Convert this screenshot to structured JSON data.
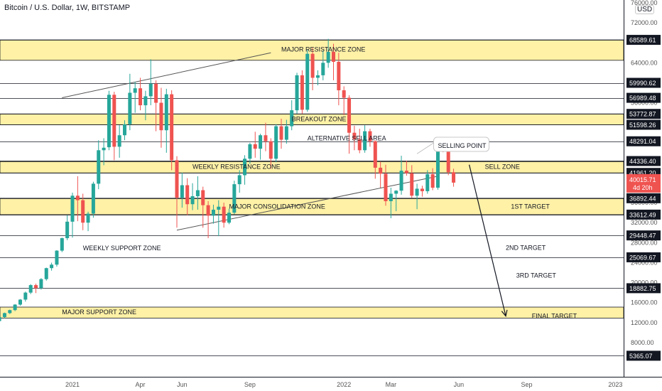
{
  "title": "Bitcoin / U.S. Dollar, 1W, BITSTAMP",
  "currency": "USD",
  "chart_data": {
    "type": "candlestick",
    "y_range": [
      4000,
      76000
    ],
    "y_ticks": [
      "76000.00",
      "72000.00",
      "64000.00",
      "56000.00",
      "48000.00",
      "40000.00",
      "36000.00",
      "32000.00",
      "28000.00",
      "24000.00",
      "20000.00",
      "16000.00",
      "12000.00",
      "8000.00"
    ],
    "x_ticks": [
      {
        "label": "2021",
        "week": 0
      },
      {
        "label": "Apr",
        "week": 13
      },
      {
        "label": "Jun",
        "week": 21
      },
      {
        "label": "Sep",
        "week": 34
      },
      {
        "label": "2022",
        "week": 52
      },
      {
        "label": "Mar",
        "week": 61
      },
      {
        "label": "Jun",
        "week": 74
      },
      {
        "label": "Sep",
        "week": 87
      },
      {
        "label": "2023",
        "week": 104
      }
    ],
    "levels": [
      {
        "label": "68589.61",
        "value": 68589.61
      },
      {
        "label": "59990.62",
        "value": 59990.62
      },
      {
        "label": "56989.48",
        "value": 56989.48
      },
      {
        "label": "53772.87",
        "value": 53772.87
      },
      {
        "label": "51598.26",
        "value": 51598.26
      },
      {
        "label": "48291.04",
        "value": 48291.04
      },
      {
        "label": "44336.40",
        "value": 44336.4
      },
      {
        "label": "41961.20",
        "value": 41961.2
      },
      {
        "label": "36892.44",
        "value": 36892.44
      },
      {
        "label": "33612.49",
        "value": 33612.49
      },
      {
        "label": "29448.47",
        "value": 29448.47
      },
      {
        "label": "25069.67",
        "value": 25069.67
      },
      {
        "label": "18882.75",
        "value": 18882.75
      },
      {
        "label": "5365.07",
        "value": 5365.07
      }
    ],
    "current_price": {
      "label": "40015.71",
      "value": 40015.71,
      "sub": "4d 20h"
    },
    "zones": [
      {
        "name": "MAJOR RESISTANCE ZONE",
        "y_low": 64500,
        "y_high": 68589.61
      },
      {
        "name": "BREAKOUT ZONE",
        "y_low": 51598.26,
        "y_high": 53772.87
      },
      {
        "name": "SELL ZONE",
        "y_low": 41961.2,
        "y_high": 44336.4
      },
      {
        "name": "1ST TARGET",
        "y_low": 33612.49,
        "y_high": 36892.44
      },
      {
        "name": "FINAL TARGET",
        "y_low": 12900,
        "y_high": 15100
      }
    ],
    "annotations": [
      {
        "text": "MAJOR RESISTANCE ZONE",
        "week": 40,
        "y": 66700
      },
      {
        "text": "BREAKOUT ZONE",
        "week": 42,
        "y": 52700
      },
      {
        "text": "ALTERNATIVE SELL AREA",
        "week": 45,
        "y": 48900
      },
      {
        "text": "SELLING POINT",
        "week": 70,
        "y": 47400
      },
      {
        "text": "WEEKLY RESISTANCE ZONE",
        "week": 23,
        "y": 43200
      },
      {
        "text": "SELL ZONE",
        "week": 79,
        "y": 43200
      },
      {
        "text": "MAJOR CONSOLIDATION ZONE",
        "week": 30,
        "y": 35200
      },
      {
        "text": "1ST TARGET",
        "week": 84,
        "y": 35200
      },
      {
        "text": "WEEKLY SUPPORT ZONE",
        "week": 2,
        "y": 26900
      },
      {
        "text": "2ND TARGET",
        "week": 83,
        "y": 27000
      },
      {
        "text": "3RD TARGET",
        "week": 85,
        "y": 21400
      },
      {
        "text": "MAJOR SUPPORT ZONE",
        "week": -2,
        "y": 14100
      },
      {
        "text": "FINAL TARGET",
        "week": 88,
        "y": 13300
      }
    ],
    "trendlines": [
      {
        "from": [
          -2,
          57000
        ],
        "to": [
          38,
          66000
        ]
      },
      {
        "from": [
          20,
          30500
        ],
        "to": [
          70,
          41300
        ]
      }
    ],
    "arrow": {
      "from": [
        76,
        43600
      ],
      "to": [
        83,
        13300
      ]
    },
    "candles": [
      [
        10900,
        11400,
        10700,
        11300
      ],
      [
        11300,
        11900,
        11100,
        11800
      ],
      [
        11800,
        12400,
        11600,
        12300
      ],
      [
        12300,
        13200,
        12100,
        13100
      ],
      [
        13100,
        14000,
        12900,
        13900
      ],
      [
        13900,
        14600,
        13700,
        14500
      ],
      [
        14500,
        15700,
        14300,
        15600
      ],
      [
        15600,
        16700,
        15400,
        16600
      ],
      [
        16600,
        18200,
        16200,
        18000
      ],
      [
        18000,
        19700,
        17700,
        19500
      ],
      [
        19500,
        19800,
        17900,
        18900
      ],
      [
        18900,
        20900,
        18600,
        20700
      ],
      [
        20700,
        23000,
        20400,
        22900
      ],
      [
        22900,
        24000,
        22400,
        23600
      ],
      [
        23600,
        26500,
        23200,
        26400
      ],
      [
        26400,
        29000,
        26100,
        28900
      ],
      [
        28900,
        33500,
        28500,
        32200
      ],
      [
        32200,
        38000,
        29000,
        37400
      ],
      [
        37400,
        41300,
        32300,
        36500
      ],
      [
        36500,
        37800,
        30500,
        32000
      ],
      [
        32000,
        34200,
        30300,
        33800
      ],
      [
        33800,
        40200,
        33000,
        39800
      ],
      [
        39800,
        48500,
        38700,
        46500
      ],
      [
        46500,
        48900,
        43500,
        47000
      ],
      [
        47100,
        58400,
        46500,
        57600
      ],
      [
        57600,
        58200,
        44500,
        47200
      ],
      [
        47200,
        51500,
        45000,
        49500
      ],
      [
        49500,
        52500,
        48500,
        51700
      ],
      [
        51700,
        61800,
        50500,
        58000
      ],
      [
        58000,
        60200,
        54000,
        58900
      ],
      [
        58900,
        61000,
        54500,
        55500
      ],
      [
        55500,
        58400,
        52500,
        57300
      ],
      [
        57300,
        64700,
        55500,
        59800
      ],
      [
        59800,
        60500,
        50300,
        56000
      ],
      [
        56000,
        59000,
        47000,
        50500
      ],
      [
        50500,
        58800,
        46000,
        57700
      ],
      [
        57700,
        58500,
        42500,
        44500
      ],
      [
        44500,
        45300,
        31000,
        37000
      ],
      [
        37000,
        42000,
        35000,
        39500
      ],
      [
        39500,
        40900,
        33500,
        35700
      ],
      [
        35700,
        39900,
        34500,
        37300
      ],
      [
        37300,
        41300,
        34600,
        38500
      ],
      [
        38500,
        39200,
        31000,
        35500
      ],
      [
        35500,
        36300,
        28900,
        33400
      ],
      [
        33400,
        35600,
        31800,
        34600
      ],
      [
        34600,
        36500,
        29300,
        35200
      ],
      [
        35200,
        36000,
        31000,
        32000
      ],
      [
        32000,
        34800,
        31700,
        34000
      ],
      [
        34000,
        40400,
        33700,
        39700
      ],
      [
        39700,
        42500,
        38000,
        41500
      ],
      [
        41500,
        45500,
        39600,
        44800
      ],
      [
        44800,
        48000,
        43800,
        47700
      ],
      [
        47700,
        50200,
        45000,
        46800
      ],
      [
        46800,
        49800,
        44600,
        49500
      ],
      [
        49500,
        52000,
        46300,
        48300
      ],
      [
        48300,
        48900,
        42800,
        44800
      ],
      [
        44800,
        51700,
        44100,
        51300
      ],
      [
        51300,
        52800,
        46800,
        48600
      ],
      [
        48600,
        52600,
        47800,
        51300
      ],
      [
        51300,
        56500,
        50500,
        54500
      ],
      [
        54500,
        62000,
        53800,
        61500
      ],
      [
        61500,
        62500,
        53800,
        54600
      ],
      [
        54600,
        66600,
        54200,
        65800
      ],
      [
        65800,
        67000,
        58500,
        61000
      ],
      [
        61000,
        62500,
        59500,
        61500
      ],
      [
        61500,
        66500,
        60500,
        64000
      ],
      [
        64000,
        68800,
        63000,
        66200
      ],
      [
        66200,
        67800,
        60500,
        64200
      ],
      [
        64200,
        66000,
        55500,
        58500
      ],
      [
        58500,
        59300,
        53500,
        57000
      ],
      [
        57000,
        57500,
        45800,
        50000
      ],
      [
        50000,
        51400,
        46500,
        48700
      ],
      [
        48700,
        50800,
        45900,
        46500
      ],
      [
        46500,
        51500,
        46000,
        50300
      ],
      [
        50300,
        50800,
        47200,
        48300
      ],
      [
        48300,
        48500,
        40800,
        43000
      ],
      [
        43000,
        44200,
        39000,
        41800
      ],
      [
        41800,
        43600,
        35400,
        36300
      ],
      [
        36300,
        39000,
        32900,
        37800
      ],
      [
        37800,
        38500,
        34300,
        38400
      ],
      [
        38400,
        45400,
        37600,
        42400
      ],
      [
        42400,
        44400,
        41400,
        41900
      ],
      [
        41900,
        43500,
        37000,
        37400
      ],
      [
        37400,
        39800,
        34700,
        38800
      ],
      [
        38800,
        39400,
        37200,
        38300
      ],
      [
        38300,
        42500,
        37800,
        41700
      ],
      [
        41700,
        42900,
        38500,
        39000
      ],
      [
        39000,
        48200,
        38600,
        46900
      ],
      [
        46900,
        47500,
        46100,
        46400
      ],
      [
        46400,
        47100,
        41500,
        42100
      ],
      [
        42100,
        42800,
        39200,
        40015.71
      ]
    ],
    "series_start_week": -17
  }
}
